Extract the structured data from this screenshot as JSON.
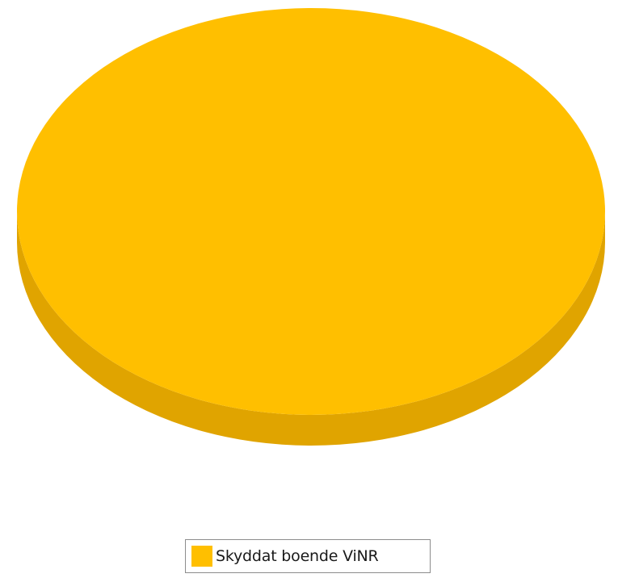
{
  "chart_data": {
    "type": "pie",
    "three_d": true,
    "title": "",
    "slices": [
      {
        "label": "Skyddat boende ViNR",
        "value": 100,
        "color": "#ffbf00",
        "side_color": "#e0a400"
      }
    ],
    "legend": {
      "position": "bottom"
    }
  }
}
